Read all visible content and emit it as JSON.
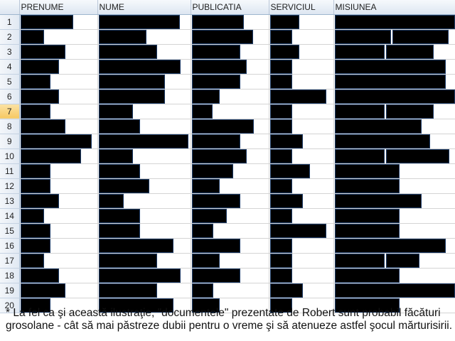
{
  "columns": [
    "",
    "PRENUME",
    "NUME",
    "PUBLICATIA",
    "SERVICIUL",
    "MISIUNEA"
  ],
  "active_row": 7,
  "redacted_cells_note_color": "#000000",
  "rows": [
    {
      "num": "1",
      "cells": [
        [
          0.68
        ],
        [
          0.88
        ],
        [
          0.67
        ],
        [
          0.45
        ],
        [
          1.0
        ]
      ]
    },
    {
      "num": "2",
      "cells": [
        [
          0.29
        ],
        [
          0.51
        ],
        [
          0.79
        ],
        [
          0.33
        ],
        [
          0.46,
          0.46
        ]
      ]
    },
    {
      "num": "3",
      "cells": [
        [
          0.58
        ],
        [
          0.63
        ],
        [
          0.62
        ],
        [
          0.45
        ],
        [
          0.41,
          0.39
        ]
      ]
    },
    {
      "num": "4",
      "cells": [
        [
          0.49
        ],
        [
          0.89
        ],
        [
          0.71
        ],
        [
          0.33
        ],
        [
          0.92
        ]
      ]
    },
    {
      "num": "5",
      "cells": [
        [
          0.38
        ],
        [
          0.72
        ],
        [
          0.62
        ],
        [
          0.33
        ],
        [
          0.92
        ]
      ]
    },
    {
      "num": "6",
      "cells": [
        [
          0.49
        ],
        [
          0.72
        ],
        [
          0.35
        ],
        [
          0.88
        ],
        [
          1.0
        ]
      ]
    },
    {
      "num": "7",
      "cells": [
        [
          0.38
        ],
        [
          0.36
        ],
        [
          0.25
        ],
        [
          0.33
        ],
        [
          0.41,
          0.39
        ]
      ]
    },
    {
      "num": "8",
      "cells": [
        [
          0.58
        ],
        [
          0.44
        ],
        [
          0.8
        ],
        [
          0.33
        ],
        [
          0.72
        ]
      ]
    },
    {
      "num": "9",
      "cells": [
        [
          0.92
        ],
        [
          0.98
        ],
        [
          0.62
        ],
        [
          0.5
        ],
        [
          0.79
        ]
      ]
    },
    {
      "num": "10",
      "cells": [
        [
          0.78
        ],
        [
          0.36
        ],
        [
          0.71
        ],
        [
          0.33
        ],
        [
          0.41,
          0.52
        ]
      ]
    },
    {
      "num": "11",
      "cells": [
        [
          0.38
        ],
        [
          0.44
        ],
        [
          0.53
        ],
        [
          0.62
        ],
        [
          0.53
        ]
      ]
    },
    {
      "num": "12",
      "cells": [
        [
          0.38
        ],
        [
          0.54
        ],
        [
          0.35
        ],
        [
          0.33
        ],
        [
          0.53
        ]
      ]
    },
    {
      "num": "13",
      "cells": [
        [
          0.49
        ],
        [
          0.26
        ],
        [
          0.62
        ],
        [
          0.5
        ],
        [
          0.72
        ]
      ]
    },
    {
      "num": "14",
      "cells": [
        [
          0.29
        ],
        [
          0.44
        ],
        [
          0.44
        ],
        [
          0.33
        ],
        [
          0.53
        ]
      ]
    },
    {
      "num": "15",
      "cells": [
        [
          0.38
        ],
        [
          0.44
        ],
        [
          0.26
        ],
        [
          0.88
        ],
        [
          0.53
        ]
      ]
    },
    {
      "num": "16",
      "cells": [
        [
          0.38
        ],
        [
          0.81
        ],
        [
          0.62
        ],
        [
          0.33
        ],
        [
          0.92
        ]
      ]
    },
    {
      "num": "17",
      "cells": [
        [
          0.29
        ],
        [
          0.63
        ],
        [
          0.35
        ],
        [
          0.33
        ],
        [
          0.41,
          0.27
        ]
      ]
    },
    {
      "num": "18",
      "cells": [
        [
          0.49
        ],
        [
          0.89
        ],
        [
          0.62
        ],
        [
          0.33
        ],
        [
          0.53
        ]
      ]
    },
    {
      "num": "19",
      "cells": [
        [
          0.58
        ],
        [
          0.63
        ],
        [
          0.26
        ],
        [
          0.5
        ],
        [
          1.0
        ]
      ]
    },
    {
      "num": "20",
      "cells": [
        [
          0.38
        ],
        [
          0.81
        ],
        [
          0.35
        ],
        [
          0.33
        ],
        [
          0.53
        ]
      ]
    }
  ],
  "footnote": "* La fel ca şi această ilustraţie, \"documentele\" prezentate de Robert sunt probabil făcături grosolane - cât să mai păstreze dubii pentru o vreme şi să atenueze astfel şocul mărturisirii."
}
